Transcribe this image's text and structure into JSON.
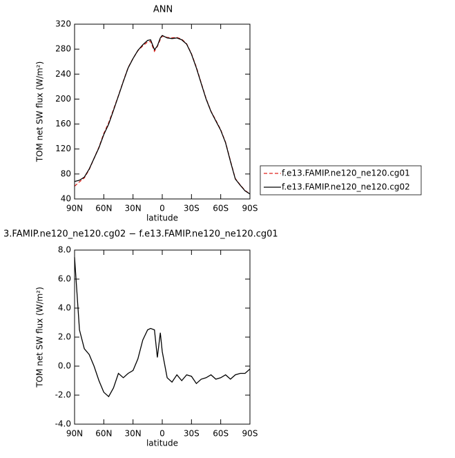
{
  "chart_data": [
    {
      "type": "line",
      "title": "ANN",
      "xlabel": "latitude",
      "ylabel": "TOM net SW flux (W/m²)",
      "x": [
        90,
        85,
        80,
        75,
        70,
        65,
        60,
        55,
        50,
        45,
        40,
        35,
        30,
        25,
        20,
        15,
        12,
        8,
        5,
        2,
        0,
        -5,
        -10,
        -15,
        -20,
        -25,
        -30,
        -35,
        -40,
        -45,
        -50,
        -55,
        -60,
        -65,
        -70,
        -75,
        -80,
        -85,
        -90
      ],
      "series": [
        {
          "name": "f.e13.FAMIP.ne120_ne120.cg01",
          "color": "#e0201a",
          "dash": "dashed",
          "values": [
            60.5,
            67.5,
            73.8,
            87.2,
            105,
            123,
            144.8,
            162.1,
            183.5,
            205.5,
            228.8,
            250.5,
            265.3,
            277.5,
            285.2,
            291.5,
            292.4,
            276.5,
            284.4,
            295.7,
            301,
            298.8,
            298.1,
            298.6,
            296,
            288.6,
            272.7,
            251.2,
            225.9,
            200.8,
            180.6,
            165.9,
            150.8,
            130.6,
            100.9,
            72.6,
            62.5,
            53.5,
            48.2
          ]
        },
        {
          "name": "f.e13.FAMIP.ne120_ne120.cg02",
          "color": "#000000",
          "dash": "solid",
          "values": [
            68,
            70,
            75,
            88,
            105,
            122,
            143,
            160,
            182,
            205,
            228,
            250,
            265,
            278,
            287,
            294,
            295,
            279,
            285,
            298,
            302,
            298,
            297,
            298,
            295,
            288,
            272,
            250,
            225,
            200,
            180,
            165,
            150,
            130,
            100,
            72,
            62,
            53,
            48
          ]
        }
      ],
      "xlim": [
        90,
        -90
      ],
      "xticks": [
        {
          "value": 90,
          "label": "90N"
        },
        {
          "value": 60,
          "label": "60N"
        },
        {
          "value": 30,
          "label": "30N"
        },
        0,
        {
          "value": -30,
          "label": "30S"
        },
        {
          "value": -60,
          "label": "60S"
        },
        {
          "value": -90,
          "label": "90S"
        }
      ],
      "ylim": [
        40,
        320
      ],
      "yticks": [
        40,
        80,
        120,
        160,
        200,
        240,
        280,
        320
      ],
      "legend": "right"
    },
    {
      "type": "line",
      "title": "3.FAMIP.ne120_ne120.cg02 − f.e13.FAMIP.ne120_ne120.cg01",
      "xlabel": "latitude",
      "ylabel": "TOM net SW flux (W/m²)",
      "x": [
        90,
        85,
        80,
        75,
        70,
        65,
        60,
        55,
        50,
        45,
        40,
        35,
        30,
        25,
        20,
        15,
        12,
        8,
        5,
        2,
        0,
        -5,
        -10,
        -15,
        -20,
        -25,
        -30,
        -35,
        -40,
        -45,
        -50,
        -55,
        -60,
        -65,
        -70,
        -75,
        -80,
        -85,
        -90
      ],
      "series": [
        {
          "color": "#000000",
          "values": [
            7.5,
            2.5,
            1.2,
            0.8,
            0,
            -1,
            -1.8,
            -2.1,
            -1.5,
            -0.5,
            -0.8,
            -0.5,
            -0.3,
            0.5,
            1.8,
            2.5,
            2.6,
            2.5,
            0.6,
            2.3,
            1.0,
            -0.8,
            -1.1,
            -0.6,
            -1.0,
            -0.6,
            -0.7,
            -1.2,
            -0.9,
            -0.8,
            -0.6,
            -0.9,
            -0.8,
            -0.6,
            -0.9,
            -0.6,
            -0.5,
            -0.5,
            -0.2
          ]
        }
      ],
      "xlim": [
        90,
        -90
      ],
      "xticks": [
        {
          "value": 90,
          "label": "90N"
        },
        {
          "value": 60,
          "label": "60N"
        },
        {
          "value": 30,
          "label": "30N"
        },
        0,
        {
          "value": -30,
          "label": "30S"
        },
        {
          "value": -60,
          "label": "60S"
        },
        {
          "value": -90,
          "label": "90S"
        }
      ],
      "ylim": [
        -4,
        8
      ],
      "yticks": [
        {
          "value": -4,
          "label": "-4.0"
        },
        {
          "value": -2,
          "label": "-2.0"
        },
        {
          "value": 0,
          "label": "0.0"
        },
        {
          "value": 2,
          "label": "2.0"
        },
        {
          "value": 4,
          "label": "4.0"
        },
        {
          "value": 6,
          "label": "6.0"
        },
        {
          "value": 8,
          "label": "8.0"
        }
      ]
    }
  ]
}
